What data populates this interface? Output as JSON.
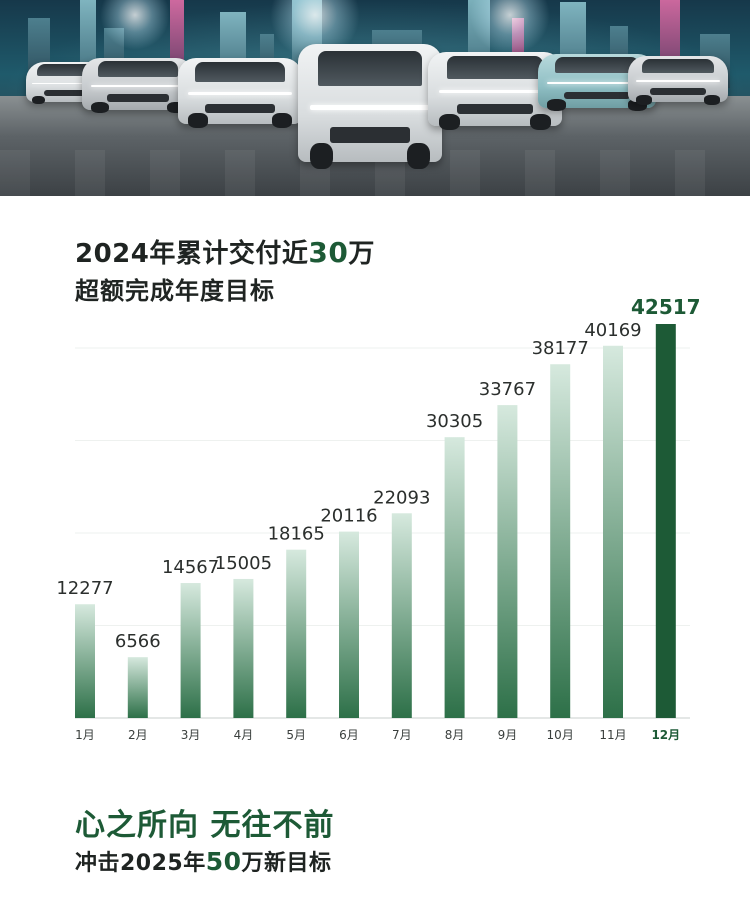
{
  "heading": {
    "line1_prefix": "2024年累计交付近",
    "line1_highlight": "30",
    "line1_suffix": "万",
    "line2": "超额完成年度目标"
  },
  "chart_data": {
    "type": "bar",
    "categories": [
      "1月",
      "2月",
      "3月",
      "4月",
      "5月",
      "6月",
      "7月",
      "8月",
      "9月",
      "10月",
      "11月",
      "12月"
    ],
    "values": [
      12277,
      6566,
      14567,
      15005,
      18165,
      20116,
      22093,
      30305,
      33767,
      38177,
      40169,
      42517
    ],
    "highlight_index": 11,
    "ylim": [
      0,
      42517
    ],
    "grid": true,
    "colors": {
      "bar_top": "#d6e9de",
      "bar_bottom": "#2d7048",
      "highlight_bar": "#1d5a36",
      "highlight_text": "#1d5a36"
    }
  },
  "footer": {
    "slogan": "心之所向 无往不前",
    "sub_prefix": "冲击2025年",
    "sub_highlight": "50",
    "sub_suffix": "万新目标"
  }
}
